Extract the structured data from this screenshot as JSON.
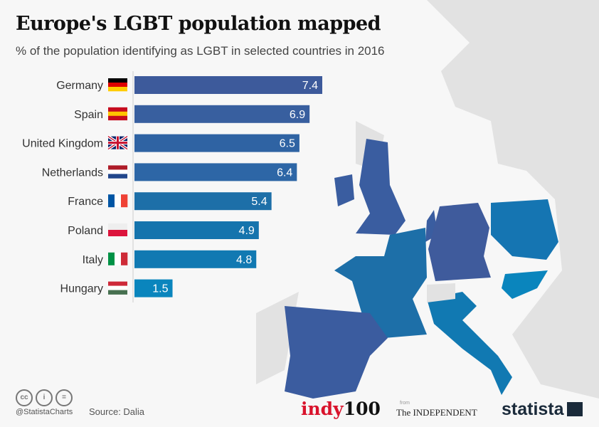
{
  "title": "Europe's LGBT population mapped",
  "subtitle": "% of the population identifying as LGBT in selected countries in 2016",
  "footer": {
    "handle": "@StatistaCharts",
    "source": "Source: Dalia",
    "brand_indy": "indy",
    "brand_100": "100",
    "from": "from",
    "independent": "The INDEPENDENT",
    "statista": "statista",
    "license_icons": [
      "cc",
      "by",
      "nd"
    ]
  },
  "chart_data": {
    "type": "bar",
    "orientation": "horizontal",
    "title": "Europe's LGBT population mapped",
    "subtitle": "% of the population identifying as LGBT in selected countries in 2016",
    "categories": [
      "Germany",
      "Spain",
      "United Kingdom",
      "Netherlands",
      "France",
      "Poland",
      "Italy",
      "Hungary"
    ],
    "values": [
      7.4,
      6.9,
      6.5,
      6.4,
      5.4,
      4.9,
      4.8,
      1.5
    ],
    "colors": [
      "#3d5a9b",
      "#385f9f",
      "#2f63a3",
      "#2d66a6",
      "#1d6fa8",
      "#1574ad",
      "#1179b2",
      "#0a85bd"
    ],
    "xlim": [
      0,
      7.4
    ],
    "grid": false,
    "legend": "none",
    "data_labels": true
  }
}
